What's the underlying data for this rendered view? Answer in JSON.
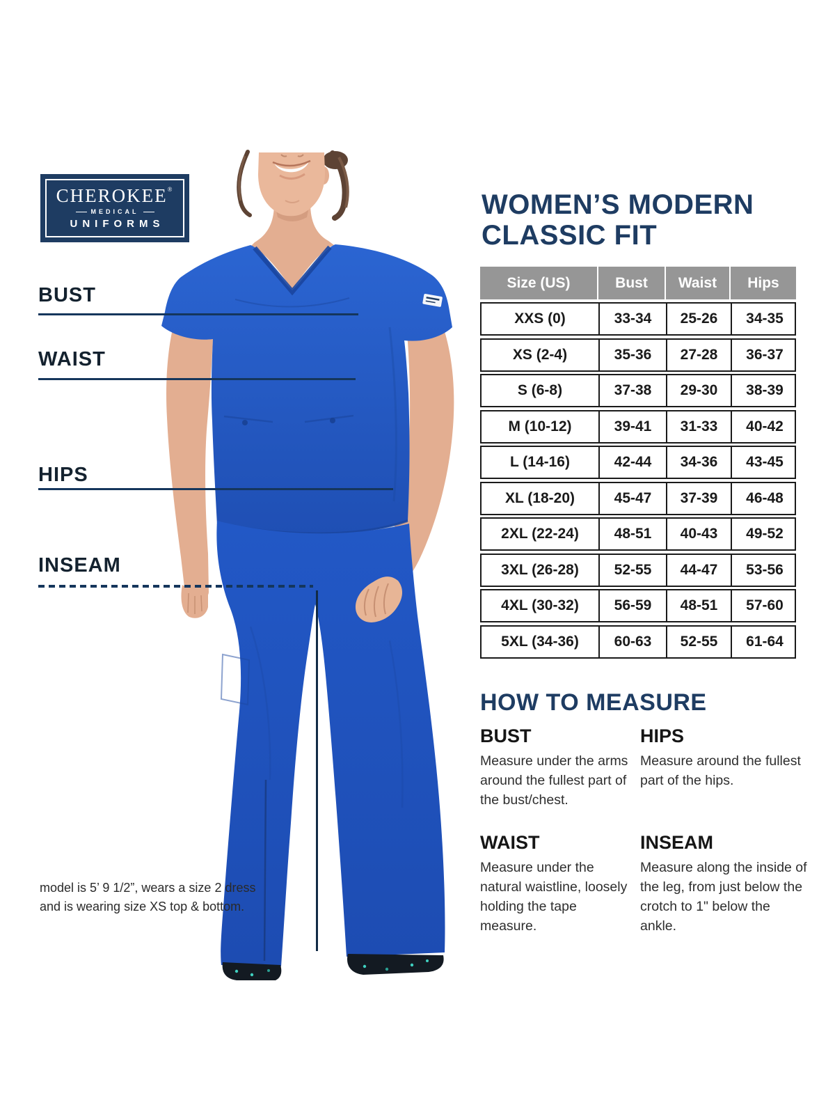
{
  "logo": {
    "brand": "CHEROKEE",
    "registered": "®",
    "sub1": "MEDICAL",
    "sub2": "UNIFORMS"
  },
  "title": {
    "line1": "WOMEN’S MODERN",
    "line2": "CLASSIC FIT"
  },
  "guides": {
    "bust": "BUST",
    "waist": "WAIST",
    "hips": "HIPS",
    "inseam": "INSEAM"
  },
  "size_table": {
    "columns": [
      "Size (US)",
      "Bust",
      "Waist",
      "Hips"
    ],
    "rows": [
      [
        "XXS (0)",
        "33-34",
        "25-26",
        "34-35"
      ],
      [
        "XS (2-4)",
        "35-36",
        "27-28",
        "36-37"
      ],
      [
        "S (6-8)",
        "37-38",
        "29-30",
        "38-39"
      ],
      [
        "M (10-12)",
        "39-41",
        "31-33",
        "40-42"
      ],
      [
        "L (14-16)",
        "42-44",
        "34-36",
        "43-45"
      ],
      [
        "XL (18-20)",
        "45-47",
        "37-39",
        "46-48"
      ],
      [
        "2XL (22-24)",
        "48-51",
        "40-43",
        "49-52"
      ],
      [
        "3XL (26-28)",
        "52-55",
        "44-47",
        "53-56"
      ],
      [
        "4XL (30-32)",
        "56-59",
        "48-51",
        "57-60"
      ],
      [
        "5XL (34-36)",
        "60-63",
        "52-55",
        "61-64"
      ]
    ]
  },
  "how_to_measure": {
    "heading": "HOW TO MEASURE",
    "items": [
      {
        "name": "BUST",
        "text": "Measure under the arms around the fullest part of the bust/chest."
      },
      {
        "name": "HIPS",
        "text": "Measure around the fullest part of the hips."
      },
      {
        "name": "WAIST",
        "text": "Measure under the natural waistline, loosely holding the tape measure."
      },
      {
        "name": "INSEAM",
        "text": "Measure along the inside of the leg, from just below the crotch to 1\" below the ankle."
      }
    ]
  },
  "model_note": {
    "line1": "model is 5’ 9 1/2”, wears a size 2 dress",
    "line2": "and is wearing size XS top & bottom."
  },
  "colors": {
    "brand_navy": "#1e3c62",
    "scrub_blue": "#2157c4",
    "table_header_gray": "#969696",
    "guide_line_navy": "#15365c",
    "shoe_accent_teal": "#3fd0c0"
  }
}
